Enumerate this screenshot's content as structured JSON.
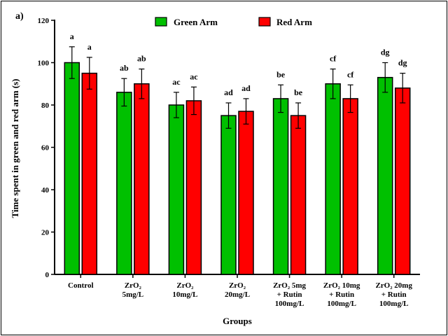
{
  "chart_data": {
    "type": "bar",
    "panel_label": "a)",
    "ylabel": "Time spent in green and red arm (s)",
    "xlabel": "Groups",
    "ylim": [
      0,
      120
    ],
    "yticks": [
      0,
      20,
      40,
      60,
      80,
      100,
      120
    ],
    "legend_position": "top-center",
    "grid": false,
    "categories": [
      [
        "Control"
      ],
      [
        "ZrO₂",
        "5mg/L"
      ],
      [
        "ZrO₂",
        "10mg/L"
      ],
      [
        "ZrO₂",
        "20mg/L"
      ],
      [
        "ZrO₂ 5mg",
        "+ Rutin",
        "100mg/L"
      ],
      [
        "ZrO₂ 10mg",
        "+ Rutin",
        "100mg/L"
      ],
      [
        "ZrO₂ 20mg",
        "+ Rutin",
        "100mg/L"
      ]
    ],
    "series": [
      {
        "name": "Green Arm",
        "color": "#00c000",
        "values": [
          100,
          86,
          80,
          75,
          83,
          90,
          93
        ],
        "errors": [
          7.5,
          6.5,
          6,
          6,
          6.5,
          7,
          7
        ],
        "labels": [
          "a",
          "ab",
          "ac",
          "ad",
          "be",
          "cf",
          "dg"
        ]
      },
      {
        "name": "Red Arm",
        "color": "#ff0000",
        "values": [
          95,
          90,
          82,
          77,
          75,
          83,
          88
        ],
        "errors": [
          7.5,
          7,
          6.5,
          6,
          6,
          6.5,
          7
        ],
        "labels": [
          "a",
          "ab",
          "ac",
          "ad",
          "be",
          "cf",
          "dg"
        ]
      }
    ]
  }
}
